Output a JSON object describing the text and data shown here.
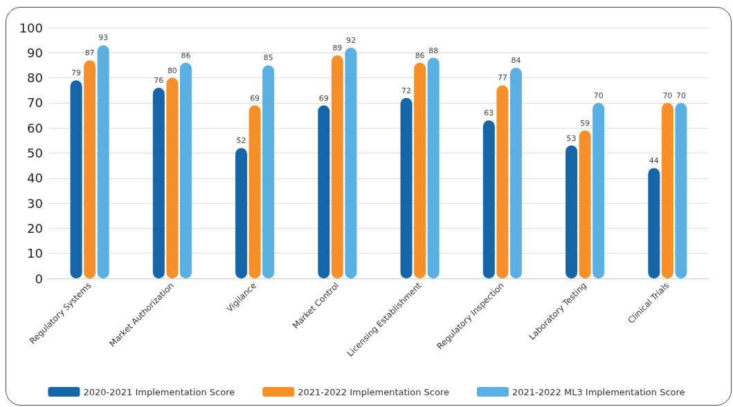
{
  "chart_data": {
    "type": "bar",
    "categories": [
      "Regulatory Systems",
      "Market Authorization",
      "Vigilance",
      "Market Control",
      "Licensing Establishment",
      "Regulatory Inspection",
      "Laboratory Testing",
      "Clinical Trials"
    ],
    "series": [
      {
        "name": "2020-2021 Implementation Score",
        "color": "#1565a7",
        "values": [
          79,
          76,
          52,
          69,
          72,
          63,
          53,
          44
        ]
      },
      {
        "name": "2021-2022 Implementation Score",
        "color": "#f7902a",
        "values": [
          87,
          80,
          69,
          89,
          86,
          77,
          59,
          70
        ]
      },
      {
        "name": "2021-2022 ML3 Implementation Score",
        "color": "#5aafe3",
        "values": [
          93,
          86,
          85,
          92,
          88,
          84,
          70,
          70
        ]
      }
    ],
    "ylim": [
      0,
      100
    ],
    "yticks": [
      0,
      10,
      20,
      30,
      40,
      50,
      60,
      70,
      80,
      90,
      100
    ],
    "grid": "y",
    "legend": "bottom",
    "data_labels": true
  }
}
